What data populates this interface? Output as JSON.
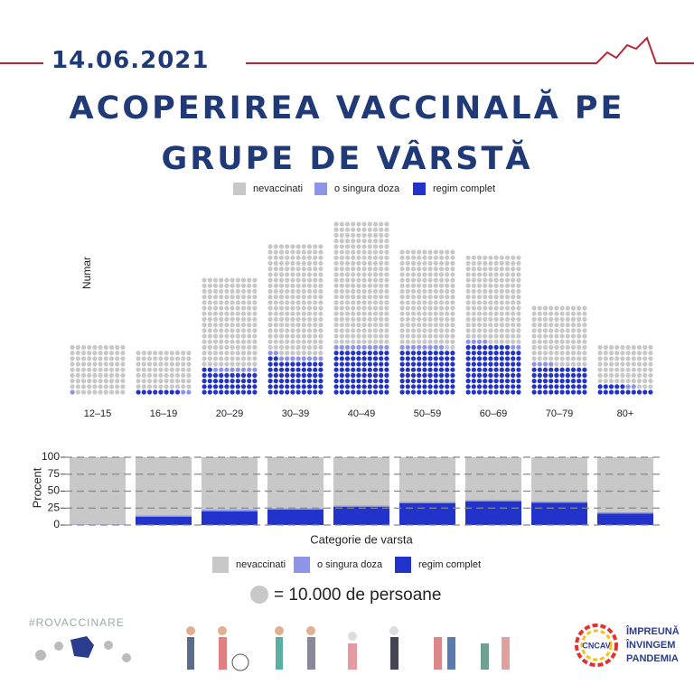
{
  "date": "14.06.2021",
  "title": "ACOPERIREA VACCINALĂ PE GRUPE DE VÂRSTĂ",
  "chart_data": [
    {
      "type": "waffle",
      "ylabel": "Numar",
      "categories": [
        "12–15",
        "16–19",
        "20–29",
        "30–39",
        "40–49",
        "50–59",
        "60–69",
        "70–79",
        "80+"
      ],
      "series": [
        {
          "name": "nevaccinati",
          "color": "#c8c8c8",
          "values": [
            89,
            70,
            160,
            198,
            220,
            172,
            156,
            106,
            73
          ]
        },
        {
          "name": "o singura doza",
          "color": "#8f95e6",
          "values": [
            1,
            2,
            8,
            10,
            10,
            8,
            6,
            4,
            2
          ]
        },
        {
          "name": "regim complet",
          "color": "#2233cc",
          "values": [
            0,
            8,
            42,
            62,
            80,
            80,
            88,
            50,
            15
          ]
        }
      ]
    },
    {
      "type": "bar",
      "stacked": true,
      "ylabel": "Procent",
      "xlabel": "Categorie de varsta",
      "categories": [
        "12–15",
        "16–19",
        "20–29",
        "30–39",
        "40–49",
        "50–59",
        "60–69",
        "70–79",
        "80+"
      ],
      "series": [
        {
          "name": "nevaccinati",
          "color": "#c8c8c8",
          "values": [
            99,
            86,
            77,
            75,
            71,
            66,
            63,
            65,
            81
          ]
        },
        {
          "name": "o singura doza",
          "color": "#8f95e6",
          "values": [
            1,
            2,
            3,
            2,
            2,
            2,
            2,
            2,
            2
          ]
        },
        {
          "name": "regim complet",
          "color": "#2233cc",
          "values": [
            0,
            12,
            20,
            23,
            27,
            32,
            35,
            33,
            17
          ]
        }
      ],
      "ylim": [
        0,
        100
      ],
      "yticks": [
        0,
        25,
        50,
        75,
        100
      ],
      "grid": true
    }
  ],
  "dot_legend": "= 10.000 de persoane",
  "footer": {
    "hashtag": "#ROVACCINARE",
    "logo": "CNCAV",
    "slogan": [
      "ÎMPREUNĂ",
      "ÎNVINGEM",
      "PANDEMIA"
    ]
  }
}
